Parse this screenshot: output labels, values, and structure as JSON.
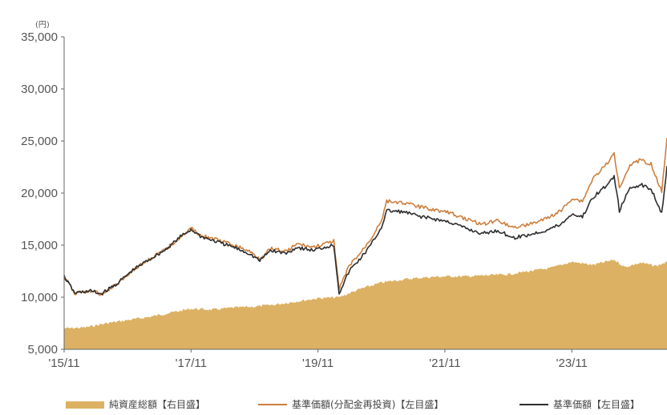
{
  "chart_data": {
    "type": "line",
    "unit_label": "(円)",
    "x_tick_labels": [
      "'15/11",
      "'17/11",
      "'19/11",
      "'21/11",
      "'23/11"
    ],
    "y_tick_labels": [
      "5,000",
      "10,000",
      "15,000",
      "20,000",
      "25,000",
      "30,000",
      "35,000"
    ],
    "ylim": [
      5000,
      35000
    ],
    "x_range": [
      "2015-11",
      "2025-05"
    ],
    "grid": false,
    "legend_position": "bottom",
    "colors": {
      "net_assets": "#dcb163",
      "reinvested": "#cd7f3c",
      "nav": "#2d2d2d"
    },
    "series": [
      {
        "name": "純資産総額【右目盛】",
        "type": "area",
        "color_key": "net_assets",
        "points": [
          [
            "2015-11",
            7000
          ],
          [
            "2016-03",
            7100
          ],
          [
            "2016-07",
            7500
          ],
          [
            "2016-11",
            7800
          ],
          [
            "2017-03",
            8100
          ],
          [
            "2017-07",
            8500
          ],
          [
            "2017-11",
            8900
          ],
          [
            "2018-03",
            8800
          ],
          [
            "2018-07",
            9000
          ],
          [
            "2018-11",
            9100
          ],
          [
            "2019-03",
            9300
          ],
          [
            "2019-07",
            9600
          ],
          [
            "2019-11",
            9900
          ],
          [
            "2020-03",
            10000
          ],
          [
            "2020-07",
            10800
          ],
          [
            "2020-11",
            11400
          ],
          [
            "2021-03",
            11700
          ],
          [
            "2021-07",
            11900
          ],
          [
            "2021-11",
            12000
          ],
          [
            "2022-03",
            12000
          ],
          [
            "2022-07",
            12100
          ],
          [
            "2022-11",
            12200
          ],
          [
            "2023-03",
            12500
          ],
          [
            "2023-07",
            12800
          ],
          [
            "2023-11",
            13400
          ],
          [
            "2024-03",
            13100
          ],
          [
            "2024-07",
            13600
          ],
          [
            "2024-09",
            12900
          ],
          [
            "2024-12",
            13300
          ],
          [
            "2025-03",
            13000
          ],
          [
            "2025-05",
            13400
          ]
        ]
      },
      {
        "name": "基準価額(分配金再投資)【左目盛】",
        "type": "line",
        "color_key": "reinvested",
        "points": [
          [
            "2015-11",
            12000
          ],
          [
            "2016-01",
            10400
          ],
          [
            "2016-04",
            10600
          ],
          [
            "2016-06",
            10300
          ],
          [
            "2016-09",
            11300
          ],
          [
            "2016-12",
            12600
          ],
          [
            "2017-03",
            13600
          ],
          [
            "2017-06",
            14500
          ],
          [
            "2017-09",
            15800
          ],
          [
            "2017-11",
            16600
          ],
          [
            "2018-01",
            15900
          ],
          [
            "2018-04",
            15500
          ],
          [
            "2018-07",
            15000
          ],
          [
            "2018-10",
            14400
          ],
          [
            "2018-12",
            13700
          ],
          [
            "2019-02",
            14700
          ],
          [
            "2019-05",
            14400
          ],
          [
            "2019-07",
            15100
          ],
          [
            "2019-10",
            14800
          ],
          [
            "2020-01",
            15200
          ],
          [
            "2020-02",
            15400
          ],
          [
            "2020-03",
            10800
          ],
          [
            "2020-05",
            13100
          ],
          [
            "2020-07",
            14200
          ],
          [
            "2020-09",
            15600
          ],
          [
            "2020-11",
            17400
          ],
          [
            "2020-12",
            19200
          ],
          [
            "2021-03",
            19100
          ],
          [
            "2021-06",
            18700
          ],
          [
            "2021-09",
            18400
          ],
          [
            "2021-12",
            18100
          ],
          [
            "2022-03",
            17500
          ],
          [
            "2022-06",
            17000
          ],
          [
            "2022-09",
            17400
          ],
          [
            "2022-12",
            16700
          ],
          [
            "2023-03",
            17000
          ],
          [
            "2023-06",
            17500
          ],
          [
            "2023-09",
            18300
          ],
          [
            "2023-11",
            19500
          ],
          [
            "2024-01",
            19200
          ],
          [
            "2024-03",
            21400
          ],
          [
            "2024-06",
            23000
          ],
          [
            "2024-07",
            23800
          ],
          [
            "2024-08",
            20600
          ],
          [
            "2024-10",
            22700
          ],
          [
            "2024-12",
            23200
          ],
          [
            "2025-02",
            22800
          ],
          [
            "2025-04",
            20100
          ],
          [
            "2025-05",
            25300
          ]
        ]
      },
      {
        "name": "基準価額【左目盛】",
        "type": "line",
        "color_key": "nav",
        "points": [
          [
            "2015-11",
            12000
          ],
          [
            "2016-01",
            10400
          ],
          [
            "2016-04",
            10600
          ],
          [
            "2016-06",
            10300
          ],
          [
            "2016-09",
            11300
          ],
          [
            "2016-12",
            12600
          ],
          [
            "2017-03",
            13600
          ],
          [
            "2017-06",
            14500
          ],
          [
            "2017-09",
            15800
          ],
          [
            "2017-11",
            16500
          ],
          [
            "2018-01",
            15800
          ],
          [
            "2018-04",
            15300
          ],
          [
            "2018-07",
            14800
          ],
          [
            "2018-10",
            14200
          ],
          [
            "2018-12",
            13500
          ],
          [
            "2019-02",
            14500
          ],
          [
            "2019-05",
            14200
          ],
          [
            "2019-07",
            14800
          ],
          [
            "2019-10",
            14500
          ],
          [
            "2020-01",
            14900
          ],
          [
            "2020-02",
            15000
          ],
          [
            "2020-03",
            10400
          ],
          [
            "2020-05",
            12600
          ],
          [
            "2020-07",
            13700
          ],
          [
            "2020-09",
            15000
          ],
          [
            "2020-11",
            16700
          ],
          [
            "2020-12",
            18300
          ],
          [
            "2021-03",
            18200
          ],
          [
            "2021-06",
            17800
          ],
          [
            "2021-09",
            17500
          ],
          [
            "2021-12",
            17200
          ],
          [
            "2022-03",
            16600
          ],
          [
            "2022-06",
            16100
          ],
          [
            "2022-09",
            16400
          ],
          [
            "2022-12",
            15700
          ],
          [
            "2023-03",
            16000
          ],
          [
            "2023-06",
            16400
          ],
          [
            "2023-09",
            17000
          ],
          [
            "2023-11",
            18000
          ],
          [
            "2024-01",
            17700
          ],
          [
            "2024-03",
            19600
          ],
          [
            "2024-06",
            20900
          ],
          [
            "2024-07",
            21700
          ],
          [
            "2024-08",
            18300
          ],
          [
            "2024-10",
            20500
          ],
          [
            "2024-12",
            20800
          ],
          [
            "2025-02",
            20400
          ],
          [
            "2025-04",
            18100
          ],
          [
            "2025-05",
            22600
          ]
        ]
      }
    ]
  }
}
